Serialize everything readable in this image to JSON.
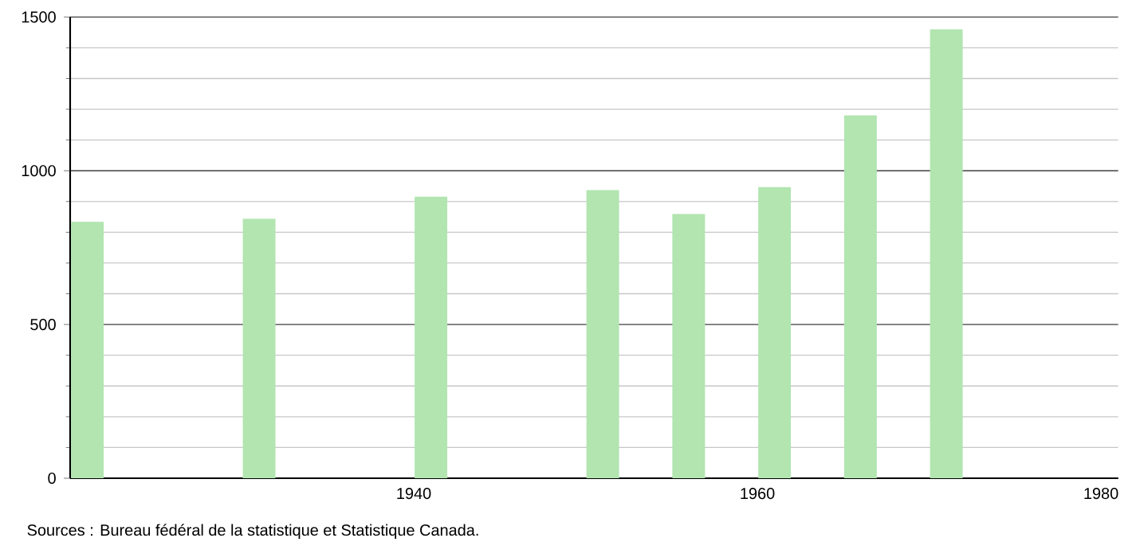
{
  "chart_data": {
    "type": "bar",
    "x": [
      1921,
      1931,
      1941,
      1951,
      1956,
      1961,
      1966,
      1971
    ],
    "values": [
      834,
      844,
      916,
      937,
      859,
      947,
      1180,
      1460
    ],
    "color": "#b2e5b0",
    "xlim": [
      1920,
      1981
    ],
    "xticks": [
      1940,
      1960,
      1980
    ],
    "ylim": [
      0,
      1500
    ],
    "yticks": [
      0,
      500,
      1000,
      1500
    ],
    "grid": "y",
    "annotations": [
      "Sources : Bureau fédéral de la statistique et Statistique Canada."
    ]
  }
}
